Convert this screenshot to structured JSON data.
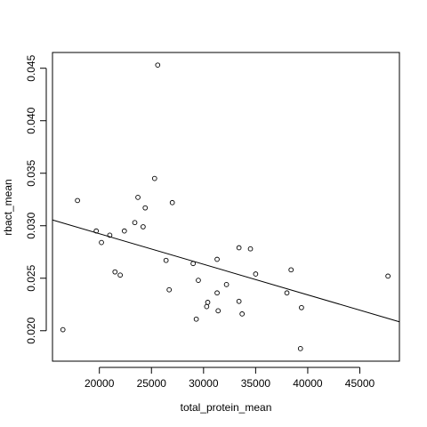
{
  "chart_data": {
    "type": "scatter",
    "title": "",
    "xlabel": "total_protein_mean",
    "ylabel": "rbact_mean",
    "xlim": [
      15500,
      48800
    ],
    "ylim": [
      0.0171,
      0.0465
    ],
    "x_ticks": [
      20000,
      25000,
      30000,
      35000,
      40000,
      45000
    ],
    "x_tick_labels": [
      "20000",
      "25000",
      "30000",
      "35000",
      "40000",
      "45000"
    ],
    "y_ticks": [
      0.02,
      0.025,
      0.03,
      0.035,
      0.04,
      0.045
    ],
    "y_tick_labels": [
      "0.020",
      "0.025",
      "0.030",
      "0.035",
      "0.040",
      "0.045"
    ],
    "grid": false,
    "legend": "none",
    "points": [
      {
        "x": 16500,
        "y": 0.0201
      },
      {
        "x": 17900,
        "y": 0.0324
      },
      {
        "x": 19700,
        "y": 0.0295
      },
      {
        "x": 20200,
        "y": 0.0284
      },
      {
        "x": 21000,
        "y": 0.0291
      },
      {
        "x": 21500,
        "y": 0.0256
      },
      {
        "x": 22000,
        "y": 0.0253
      },
      {
        "x": 22400,
        "y": 0.0295
      },
      {
        "x": 23400,
        "y": 0.0303
      },
      {
        "x": 23700,
        "y": 0.0327
      },
      {
        "x": 24200,
        "y": 0.0299
      },
      {
        "x": 24400,
        "y": 0.0317
      },
      {
        "x": 25300,
        "y": 0.0345
      },
      {
        "x": 25600,
        "y": 0.0453
      },
      {
        "x": 26400,
        "y": 0.0267
      },
      {
        "x": 26700,
        "y": 0.0239
      },
      {
        "x": 27000,
        "y": 0.0322
      },
      {
        "x": 29000,
        "y": 0.0264
      },
      {
        "x": 29300,
        "y": 0.0211
      },
      {
        "x": 29500,
        "y": 0.0248
      },
      {
        "x": 30300,
        "y": 0.0223
      },
      {
        "x": 30400,
        "y": 0.0227
      },
      {
        "x": 31300,
        "y": 0.0268
      },
      {
        "x": 31300,
        "y": 0.0236
      },
      {
        "x": 31400,
        "y": 0.0219
      },
      {
        "x": 32200,
        "y": 0.0244
      },
      {
        "x": 33400,
        "y": 0.0279
      },
      {
        "x": 33400,
        "y": 0.0228
      },
      {
        "x": 33700,
        "y": 0.0216
      },
      {
        "x": 34500,
        "y": 0.0278
      },
      {
        "x": 35000,
        "y": 0.0254
      },
      {
        "x": 38000,
        "y": 0.0236
      },
      {
        "x": 38400,
        "y": 0.0258
      },
      {
        "x": 39300,
        "y": 0.0183
      },
      {
        "x": 39400,
        "y": 0.0222
      },
      {
        "x": 47700,
        "y": 0.0252
      }
    ],
    "fit_line": {
      "x": [
        15500,
        48800
      ],
      "y": [
        0.03055,
        0.02085
      ]
    },
    "colors": {
      "points": "#000000",
      "line": "#000000",
      "background": "#ffffff"
    }
  }
}
